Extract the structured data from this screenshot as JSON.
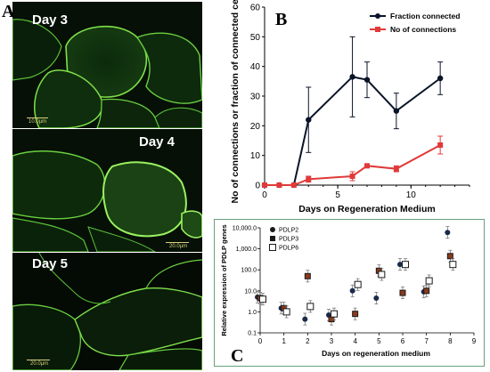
{
  "panels": {
    "A": {
      "letter": "A",
      "images": [
        {
          "day": "Day 3",
          "scale": "10.0µm"
        },
        {
          "day": "Day 4",
          "scale": "20.0µm"
        },
        {
          "day": "Day 5",
          "scale": "20.0µm"
        }
      ]
    },
    "B": {
      "letter": "B"
    },
    "C": {
      "letter": "C"
    }
  },
  "colors": {
    "black_series": "#0a1428",
    "red_series": "#e03a3a",
    "micro_green": "#7fe04a",
    "frame": "#6aa07a"
  },
  "chart_data": [
    {
      "type": "line",
      "ylabel": "No of connections or fraction of connected cells",
      "xlabel": "Days on Regeneration Medium",
      "xlim": [
        0,
        14
      ],
      "ylim": [
        0,
        60
      ],
      "xticks": [
        0,
        5,
        10
      ],
      "yticks": [
        0,
        10,
        20,
        30,
        40,
        50,
        60
      ],
      "legend_position": "top-right",
      "series": [
        {
          "name": "Fraction connected",
          "color": "#0a1428",
          "marker": "circle",
          "x": [
            0,
            1,
            2,
            3,
            6,
            7,
            9,
            12
          ],
          "y": [
            0,
            0,
            0,
            22,
            36.5,
            35.5,
            25,
            36
          ],
          "err": [
            0,
            0,
            0,
            11,
            13.5,
            6,
            6,
            5.5
          ]
        },
        {
          "name": "No of connections",
          "color": "#e03a3a",
          "marker": "square",
          "x": [
            0,
            1,
            2,
            3,
            6,
            7,
            9,
            12
          ],
          "y": [
            0,
            0,
            0,
            2,
            3,
            6.5,
            5.5,
            13.5
          ],
          "err": [
            0,
            0,
            0,
            1,
            1.5,
            0.5,
            1,
            3
          ]
        }
      ]
    },
    {
      "type": "scatter",
      "ylabel": "Relative expression of PDLP genes",
      "xlabel": "Days on regeneration medium",
      "yscale": "log",
      "ylim": [
        0.1,
        10000
      ],
      "xlim": [
        0,
        9
      ],
      "xticks": [
        0,
        1,
        2,
        3,
        4,
        5,
        6,
        7,
        8,
        9
      ],
      "ytick_labels": [
        "0.1",
        "1.0",
        "10.0",
        "100.0",
        "1,000.0",
        "10,000.0"
      ],
      "legend_position": "top-left",
      "series": [
        {
          "name": "PDLP2",
          "marker": "circle",
          "color": "#1a2a4a",
          "x": [
            0,
            1,
            2,
            3,
            4,
            5,
            6,
            7,
            8
          ],
          "y": [
            5,
            1.5,
            0.45,
            0.7,
            10,
            4.5,
            180,
            9,
            6000
          ]
        },
        {
          "name": "PDLP3",
          "marker": "filled-square",
          "color": "#1a1a1a",
          "x": [
            0,
            1,
            2,
            3,
            4,
            5,
            6,
            7,
            8
          ],
          "y": [
            4.5,
            1.5,
            50,
            0.45,
            0.8,
            90,
            8,
            10,
            450
          ]
        },
        {
          "name": "PDLP6",
          "marker": "open-square",
          "color": "#1a1a1a",
          "x": [
            0,
            1,
            2,
            3,
            4,
            5,
            6,
            7,
            8
          ],
          "y": [
            4,
            1,
            1.8,
            0.8,
            20,
            60,
            180,
            30,
            180
          ]
        }
      ]
    }
  ]
}
